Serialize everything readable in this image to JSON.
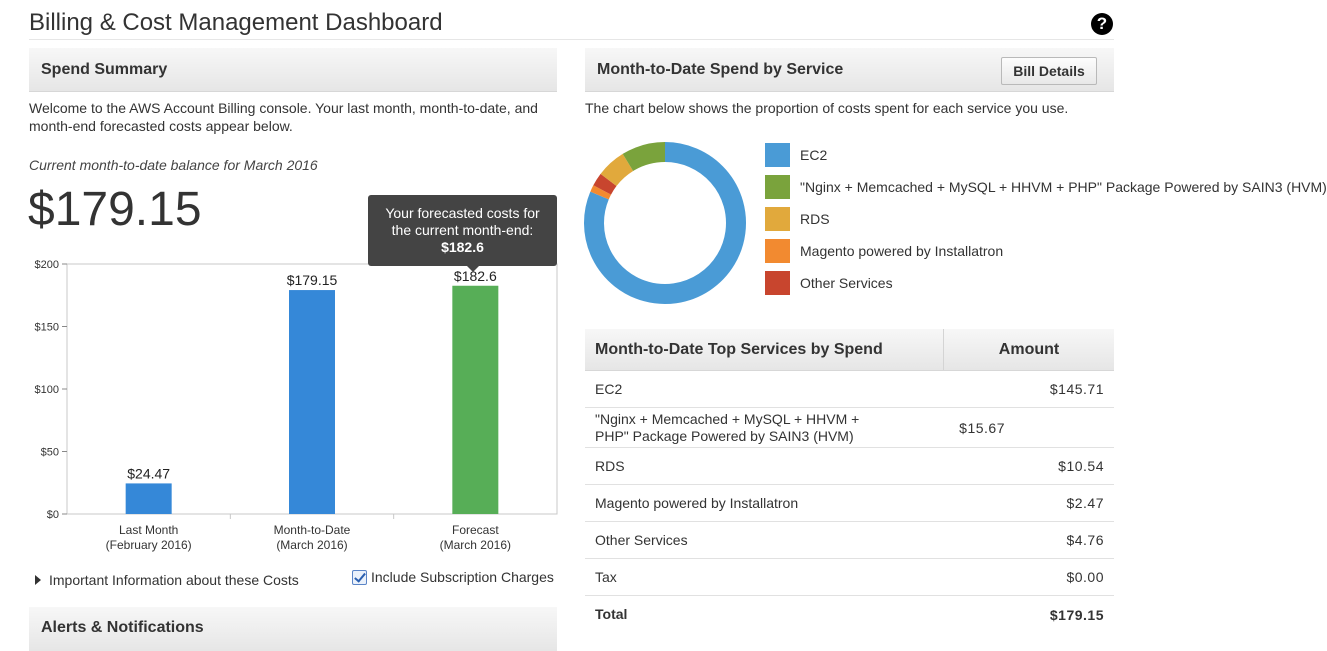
{
  "page": {
    "title": "Billing & Cost Management Dashboard",
    "help": "?"
  },
  "spend_summary": {
    "header": "Spend Summary",
    "intro": "Welcome to the AWS Account Billing console. Your last month, month-to-date, and month-end forecasted costs appear below.",
    "balance_caption": "Current month-to-date balance for March 2016",
    "balance_amount": "$179.15",
    "tooltip": {
      "line1": "Your forecasted costs for",
      "line2": "the current month-end:",
      "value": "$182.6"
    },
    "info_toggle": "Important Information about these Costs",
    "include_subscription": "Include Subscription Charges",
    "include_subscription_checked": true
  },
  "chart_data": {
    "type": "bar",
    "categories": [
      "Last Month\n(February 2016)",
      "Month-to-Date\n(March 2016)",
      "Forecast\n(March 2016)"
    ],
    "category_lines": [
      [
        "Last Month",
        "(February 2016)"
      ],
      [
        "Month-to-Date",
        "(March 2016)"
      ],
      [
        "Forecast",
        "(March 2016)"
      ]
    ],
    "values": [
      24.47,
      179.15,
      182.6
    ],
    "value_labels": [
      "$24.47",
      "$179.15",
      "$182.6"
    ],
    "colors": [
      "#3588d8",
      "#3588d8",
      "#57ae57"
    ],
    "ylim": [
      0,
      200
    ],
    "yticks": [
      0,
      50,
      100,
      150,
      200
    ],
    "ytick_labels": [
      "$0",
      "$50",
      "$100",
      "$150",
      "$200"
    ],
    "grid": false
  },
  "service_chart": {
    "header": "Month-to-Date Spend by Service",
    "bill_details_label": "Bill Details",
    "intro": "The chart below shows the proportion of costs spent for each service you use.",
    "donut": {
      "type": "pie",
      "values": [
        145.71,
        15.67,
        10.54,
        2.47,
        4.76
      ],
      "labels": [
        "EC2",
        "\"Nginx + Memcached + MySQL + HHVM + PHP\" Package Powered by SAIN3 (HVM)",
        "RDS",
        "Magento powered by Installatron",
        "Other Services"
      ],
      "colors": [
        "#4a9bd6",
        "#7aa33c",
        "#e1a93c",
        "#f28a30",
        "#c8452e"
      ],
      "order": [
        0,
        3,
        4,
        2,
        1
      ]
    },
    "legend": [
      {
        "label": "EC2",
        "color": "#4a9bd6"
      },
      {
        "label": "\"Nginx + Memcached + MySQL + HHVM + PHP\" Package Powered by SAIN3 (HVM)",
        "color": "#7aa33c"
      },
      {
        "label": "RDS",
        "color": "#e1a93c"
      },
      {
        "label": "Magento powered by Installatron",
        "color": "#f28a30"
      },
      {
        "label": "Other Services",
        "color": "#c8452e"
      }
    ]
  },
  "top_services": {
    "col_service": "Month-to-Date Top Services by Spend",
    "col_amount": "Amount",
    "rows": [
      {
        "service": "EC2",
        "amount": "$145.71"
      },
      {
        "service": "\"Nginx + Memcached + MySQL + HHVM + PHP\" Package Powered by SAIN3 (HVM)",
        "amount": "$15.67"
      },
      {
        "service": "RDS",
        "amount": "$10.54"
      },
      {
        "service": "Magento powered by Installatron",
        "amount": "$2.47"
      },
      {
        "service": "Other Services",
        "amount": "$4.76"
      },
      {
        "service": "Tax",
        "amount": "$0.00"
      }
    ],
    "total": {
      "service": "Total",
      "amount": "$179.15"
    }
  },
  "alerts": {
    "header": "Alerts & Notifications"
  }
}
